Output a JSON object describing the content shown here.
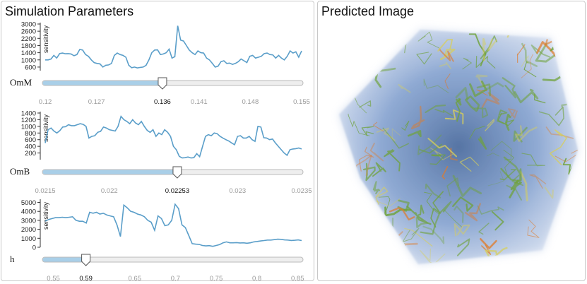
{
  "params_panel": {
    "title": "Simulation Parameters",
    "ylabel": "sensitivity",
    "params": [
      {
        "label": "OmM",
        "y_ticks": [
          "3000",
          "2600",
          "2200",
          "1800",
          "1400",
          "1000",
          "600"
        ],
        "y_min": 400,
        "y_max": 3000,
        "x_ticks": [
          "0.12",
          "0.127",
          "0.136",
          "0.141",
          "0.148",
          "0.155"
        ],
        "x_range": [
          0.12,
          0.155
        ],
        "current": 0.136,
        "current_label": "0.136",
        "sensitivity": [
          1000,
          1000,
          1050,
          1250,
          1100,
          1350,
          1380,
          1340,
          1350,
          1330,
          1230,
          1300,
          1580,
          1550,
          1300,
          1200,
          1000,
          850,
          800,
          780,
          600,
          700,
          720,
          800,
          1250,
          1380,
          1300,
          1250,
          1150,
          700,
          560,
          600,
          550,
          580,
          600,
          700,
          1000,
          1400,
          1550,
          1560,
          1300,
          1330,
          1400,
          1600,
          1100,
          1180,
          2900,
          2100,
          2050,
          1800,
          1550,
          1400,
          1300,
          1500,
          1400,
          1380,
          1100,
          1000,
          800,
          600,
          650,
          900,
          950,
          800,
          820,
          750,
          800,
          900,
          1050,
          950,
          850,
          1200,
          1250,
          1100,
          1150,
          1200,
          1350,
          1380,
          1300,
          1280,
          1100,
          1250,
          1100,
          1000,
          1200,
          1500,
          1380,
          1450,
          1150,
          1500
        ]
      },
      {
        "label": "OmB",
        "y_ticks": [
          "1400",
          "1200",
          "1000",
          "800",
          "600",
          "400",
          "200"
        ],
        "y_min": 0,
        "y_max": 1400,
        "x_ticks": [
          "0.0215",
          "0.022",
          "0.02253",
          "0.023",
          "0.0235"
        ],
        "x_range": [
          0.0215,
          0.0235
        ],
        "current": 0.02253,
        "current_label": "0.02253",
        "sensitivity": [
          500,
          900,
          950,
          860,
          800,
          870,
          980,
          990,
          1050,
          1020,
          1020,
          1050,
          1080,
          1060,
          1000,
          650,
          700,
          720,
          820,
          850,
          980,
          950,
          900,
          880,
          860,
          1000,
          1300,
          1200,
          1150,
          1080,
          1200,
          1100,
          1050,
          1150,
          1000,
          880,
          820,
          900,
          700,
          800,
          750,
          900,
          820,
          700,
          400,
          300,
          100,
          50,
          60,
          80,
          50,
          60,
          180,
          90,
          400,
          700,
          750,
          720,
          800,
          780,
          700,
          650,
          600,
          560,
          500,
          450,
          700,
          720,
          650,
          650,
          700,
          600,
          550,
          1000,
          980,
          660,
          650,
          600,
          620,
          500,
          400,
          300,
          200,
          130,
          300,
          320,
          330,
          350,
          320
        ]
      },
      {
        "label": "h",
        "y_ticks": [
          "5000",
          "4000",
          "3000",
          "2000",
          "1000",
          "0"
        ],
        "y_min": 0,
        "y_max": 5200,
        "x_ticks": [
          "0.55",
          "0.59",
          "0.65",
          "0.7",
          "0.75",
          "0.8",
          "0.85"
        ],
        "x_range": [
          0.54,
          0.855
        ],
        "current": 0.59,
        "current_label": "0.59",
        "sensitivity": [
          2900,
          3100,
          3200,
          3300,
          3300,
          3350,
          3300,
          3350,
          3400,
          3000,
          2900,
          2900,
          2700,
          3900,
          3800,
          3900,
          3700,
          3800,
          3600,
          3500,
          3400,
          2500,
          1200,
          4700,
          4400,
          4000,
          3900,
          3700,
          3600,
          3400,
          3000,
          2800,
          1900,
          3500,
          3200,
          2400,
          2500,
          3000,
          4800,
          4300,
          2500,
          2200,
          1300,
          400,
          350,
          320,
          200,
          150,
          180,
          100,
          200,
          300,
          500,
          600,
          500,
          500,
          520,
          480,
          500,
          450,
          500,
          600,
          650,
          700,
          750,
          800,
          800,
          850,
          900,
          880,
          820,
          800,
          760,
          780,
          820,
          750
        ]
      }
    ]
  },
  "image_panel": {
    "title": "Predicted Image"
  },
  "colors": {
    "line": "#5a9ec9",
    "slider_fill": "#a9cfe8",
    "volume_blue": "#8aa6d2",
    "filament_green": "#6fa23a",
    "filament_yellow": "#d8cf5a",
    "filament_orange": "#e07b2a"
  }
}
